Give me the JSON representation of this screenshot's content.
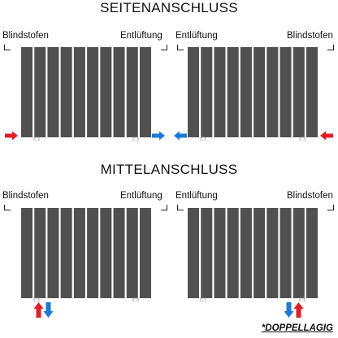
{
  "sections": [
    {
      "title": "SEITENANSCHLUSS",
      "radiators": [
        {
          "left_label": "Blindstofen",
          "right_label": "Entlüftung"
        },
        {
          "left_label": "Entlüftung",
          "right_label": "Blindstofen"
        }
      ]
    },
    {
      "title": "MITTELANSCHLUSS",
      "radiators": [
        {
          "left_label": "Blindstofen",
          "right_label": "Entlüftung"
        },
        {
          "left_label": "Entlüftung",
          "right_label": "Blindstofen"
        }
      ]
    }
  ],
  "footnote": "*DOPPELLAGIG",
  "colors": {
    "radiator": "#505050",
    "supply_arrow": "#e01e2a",
    "return_arrow": "#1e78d8"
  },
  "icons": {
    "supply": "red-arrow-icon",
    "return": "blue-arrow-icon"
  }
}
